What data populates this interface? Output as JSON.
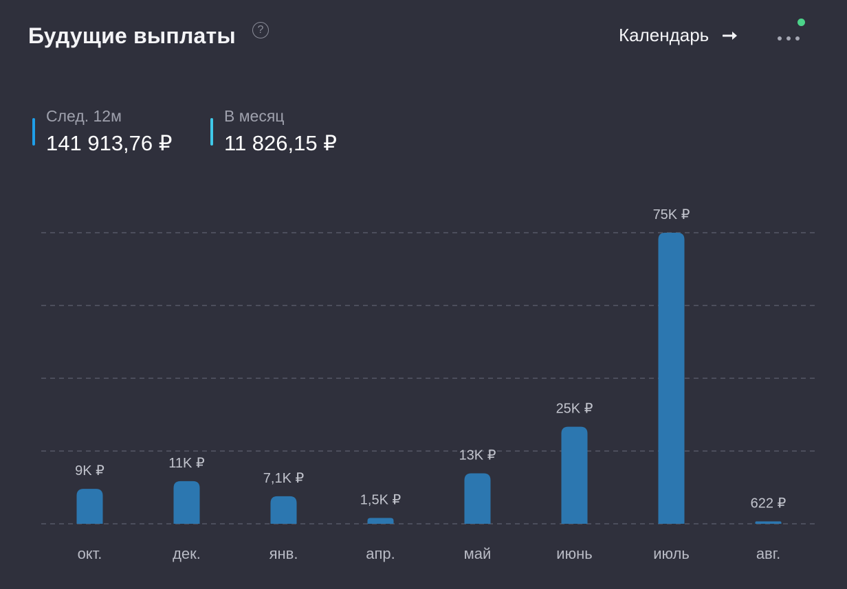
{
  "header": {
    "title": "Будущие выплаты",
    "help_glyph": "?",
    "calendar_label": "Календарь",
    "arrow_icon": "arrow-right-icon",
    "more_icon": "more-horizontal-icon",
    "notification_color": "#4cd38a"
  },
  "stats": [
    {
      "label": "След. 12м",
      "value": "141 913,76 ₽",
      "accent": "#1f9ee8"
    },
    {
      "label": "В месяц",
      "value": "11 826,15 ₽",
      "accent": "#3fc8e8"
    }
  ],
  "colors": {
    "background": "#2f303c",
    "bar": "#2c77b0",
    "grid": "#565866",
    "value_label": "#c2c4cd",
    "axis_label": "#b9bbc5"
  },
  "chart_data": {
    "type": "bar",
    "categories": [
      "окт.",
      "дек.",
      "янв.",
      "апр.",
      "май",
      "июнь",
      "июль",
      "авг."
    ],
    "values": [
      9000,
      11000,
      7100,
      1500,
      13000,
      25000,
      75000,
      622
    ],
    "value_labels": [
      "9K ₽",
      "11K ₽",
      "7,1K ₽",
      "1,5K ₽",
      "13K ₽",
      "25K ₽",
      "75K ₽",
      "622 ₽"
    ],
    "ylim": [
      0,
      75000
    ],
    "grid": true,
    "gridlines": 5,
    "legend": "none"
  }
}
